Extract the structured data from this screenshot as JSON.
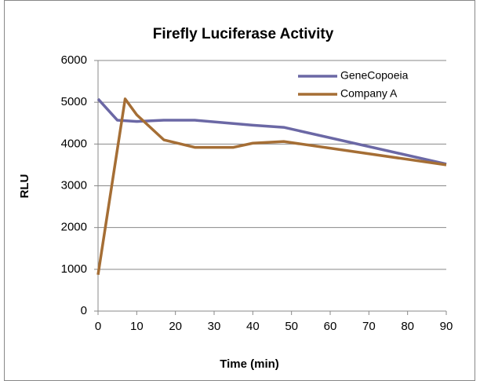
{
  "chart_data": {
    "type": "line",
    "title": "Firefly Luciferase Activity",
    "x_label": "Time (min)",
    "y_label": "RLU",
    "series": [
      {
        "name": "GeneCopoeia",
        "color": "#6b68a5",
        "x": [
          0,
          5,
          10,
          17,
          25,
          40,
          48,
          90
        ],
        "values": [
          5080,
          4570,
          4540,
          4570,
          4570,
          4450,
          4400,
          3520
        ]
      },
      {
        "name": "Company A",
        "color": "#a56e35",
        "x": [
          0,
          7,
          10,
          17,
          25,
          35,
          40,
          48,
          90
        ],
        "values": [
          870,
          5080,
          4700,
          4100,
          3920,
          3920,
          4020,
          4060,
          3500
        ]
      }
    ],
    "xlim": [
      0,
      90
    ],
    "xticks": [
      0,
      10,
      20,
      30,
      40,
      50,
      60,
      70,
      80,
      90
    ],
    "ylim": [
      0,
      6000
    ],
    "yticks": [
      0,
      1000,
      2000,
      3000,
      4000,
      5000,
      6000
    ],
    "grid": true,
    "legend": "upper right"
  }
}
